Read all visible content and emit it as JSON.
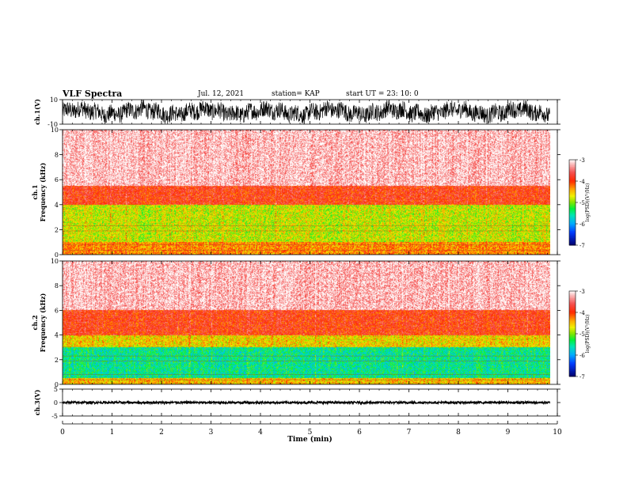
{
  "header": {
    "title": "VLF Spectra",
    "date": "Jul. 12, 2021",
    "station": "station= KAP",
    "start": "start UT =  23: 10: 0"
  },
  "chart_data": [
    {
      "type": "line",
      "ylabel": "ch.1(V)",
      "ylim": [
        -10,
        10
      ],
      "yticks": [
        "10",
        "-10"
      ],
      "description_values": {
        "x_range_min": [
          0,
          9.85
        ],
        "amplitude_range_V": [
          -10,
          10
        ]
      }
    },
    {
      "type": "heatmap",
      "ylabel_line1": "ch.1",
      "ylabel_line2": "Frequency (kHz)",
      "ylim": [
        0,
        10
      ],
      "yticks": [
        "0",
        "2",
        "4",
        "6",
        "8",
        "10"
      ],
      "colorbar": {
        "label": "log(PSD)(V²/Hz)",
        "ticks": [
          "-3",
          "-4",
          "-5",
          "-6",
          "-7"
        ],
        "range": [
          -7,
          -3
        ]
      },
      "bands_kHz": [
        {
          "from": 0,
          "to": 1,
          "level": -4.3
        },
        {
          "from": 1,
          "to": 4,
          "level": -4.8
        },
        {
          "from": 4,
          "to": 5.5,
          "level": -3.9
        },
        {
          "from": 5.5,
          "to": 10,
          "level": -3.2
        }
      ]
    },
    {
      "type": "heatmap",
      "ylabel_line1": "ch.2",
      "ylabel_line2": "Frequency (kHz)",
      "ylim": [
        0,
        10
      ],
      "yticks": [
        "0",
        "2",
        "4",
        "6",
        "8",
        "10"
      ],
      "colorbar": {
        "label": "log(PSD)(V²/Hz)",
        "ticks": [
          "-3",
          "-4",
          "-5",
          "-6",
          "-7"
        ],
        "range": [
          -7,
          -3
        ]
      },
      "bands_kHz": [
        {
          "from": 0,
          "to": 0.5,
          "level": -4.5
        },
        {
          "from": 0.5,
          "to": 3,
          "level": -5.5
        },
        {
          "from": 3,
          "to": 4,
          "level": -4.6
        },
        {
          "from": 4,
          "to": 6,
          "level": -3.9
        },
        {
          "from": 6,
          "to": 10,
          "level": -3.2
        }
      ]
    },
    {
      "type": "line",
      "ylabel": "ch.3(V)",
      "ylim": [
        -5,
        5
      ],
      "yticks": [
        "5",
        "0",
        "-5"
      ],
      "description_values": {
        "x_range_min": [
          0,
          9.85
        ],
        "band_V": [
          -0.3,
          0.3
        ]
      }
    }
  ],
  "xaxis": {
    "label": "Time (min)",
    "range": [
      0,
      10
    ],
    "ticks": [
      "0",
      "1",
      "2",
      "3",
      "4",
      "5",
      "6",
      "7",
      "8",
      "9",
      "10"
    ],
    "data_end_min": 9.85
  }
}
